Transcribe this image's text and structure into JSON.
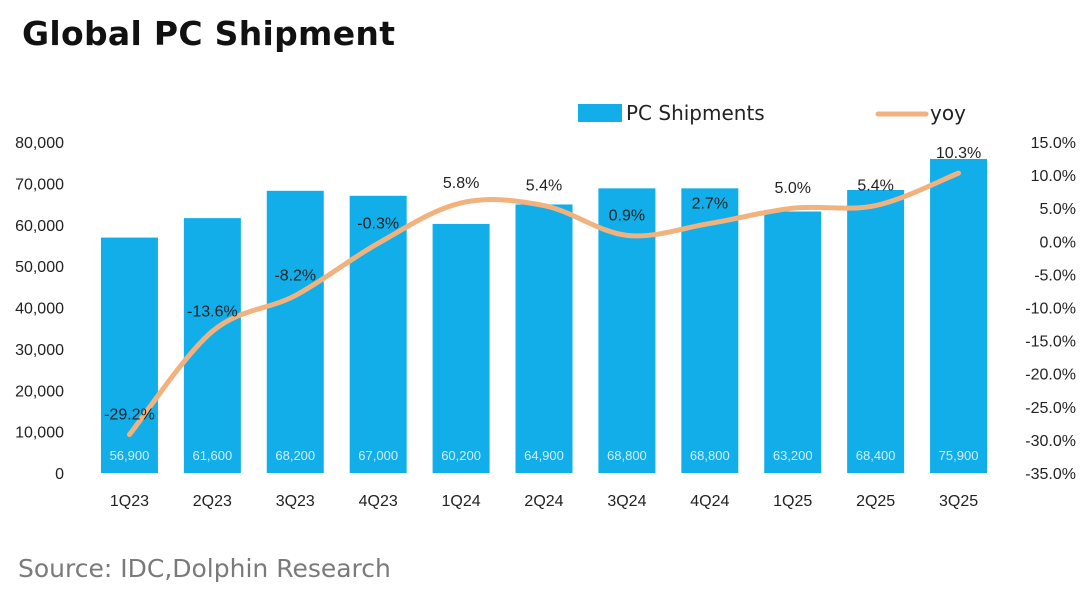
{
  "title": "Global PC Shipment",
  "source": "Source: IDC,Dolphin Research",
  "colors": {
    "bar": "#12AEEA",
    "line": "#F2B27E"
  },
  "chart_data": {
    "type": "bar",
    "categories": [
      "1Q23",
      "2Q23",
      "3Q23",
      "4Q23",
      "1Q24",
      "2Q24",
      "3Q24",
      "4Q24",
      "1Q25",
      "2Q25",
      "3Q25"
    ],
    "series": [
      {
        "name": "PC Shipments",
        "type": "bar",
        "axis": "left",
        "values": [
          56900,
          61600,
          68200,
          67000,
          60200,
          64900,
          68800,
          68800,
          63200,
          68400,
          75900
        ],
        "labels": [
          "56,900",
          "61,600",
          "68,200",
          "67,000",
          "60,200",
          "64,900",
          "68,800",
          "68,800",
          "63,200",
          "68,400",
          "75,900"
        ]
      },
      {
        "name": "yoy",
        "type": "line",
        "axis": "right",
        "values": [
          -29.2,
          -13.6,
          -8.2,
          -0.3,
          5.8,
          5.4,
          0.9,
          2.7,
          5.0,
          5.4,
          10.3
        ],
        "labels": [
          "-29.2%",
          "-13.6%",
          "-8.2%",
          "-0.3%",
          "5.8%",
          "5.4%",
          "0.9%",
          "2.7%",
          "5.0%",
          "5.4%",
          "10.3%"
        ]
      }
    ],
    "left_axis": {
      "min": 0,
      "max": 80000,
      "ticks": [
        "0",
        "10,000",
        "20,000",
        "30,000",
        "40,000",
        "50,000",
        "60,000",
        "70,000",
        "80,000"
      ]
    },
    "right_axis": {
      "min": -35,
      "max": 15,
      "ticks": [
        "15.0%",
        "10.0%",
        "5.0%",
        "0.0%",
        "-5.0%",
        "-10.0%",
        "-15.0%",
        "-20.0%",
        "-25.0%",
        "-30.0%",
        "-35.0%"
      ]
    },
    "legend": {
      "position": "top-right"
    },
    "grid": false
  }
}
